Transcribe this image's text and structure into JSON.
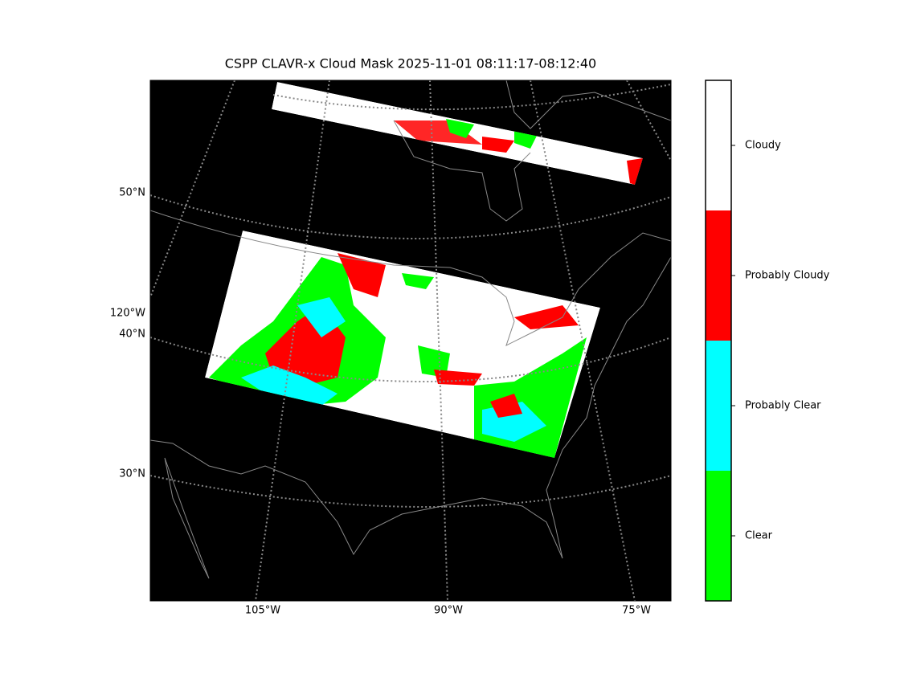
{
  "title": "CSPP CLAVR-x Cloud Mask 2025-11-01 08:11:17-08:12:40",
  "map": {
    "lat_labels": [
      "50°N",
      "40°N",
      "30°N"
    ],
    "lon_label_left": "120°W",
    "lon_labels_bottom": [
      "105°W",
      "90°W",
      "75°W"
    ]
  },
  "colorbar": {
    "classes": [
      {
        "label": "Cloudy",
        "color": "#ffffff"
      },
      {
        "label": "Probably Cloudy",
        "color": "#ff0000"
      },
      {
        "label": "Probably Clear",
        "color": "#00ffff"
      },
      {
        "label": "Clear",
        "color": "#00ff00"
      }
    ]
  }
}
